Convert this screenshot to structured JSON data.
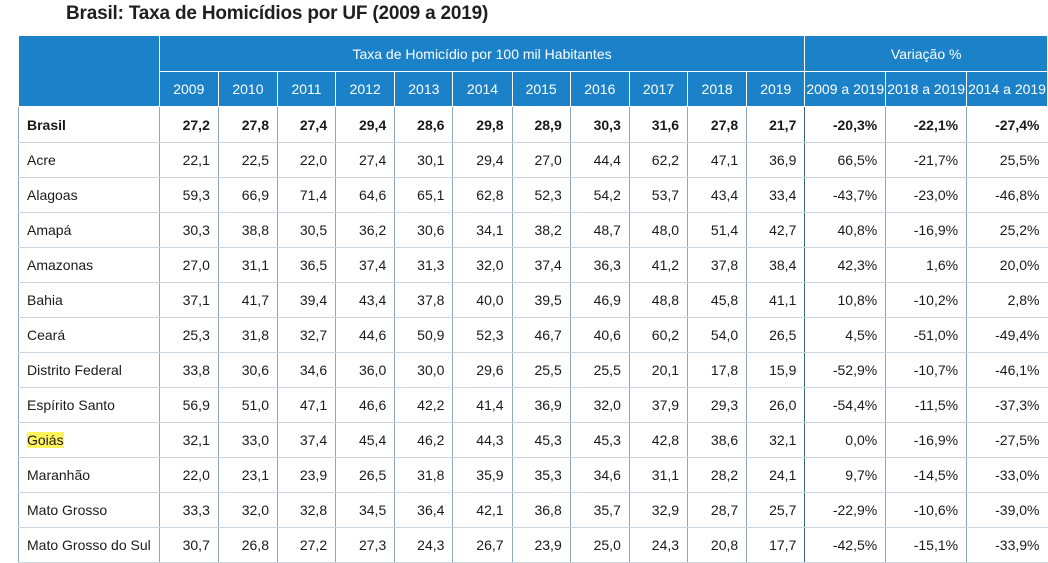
{
  "title": "Brasil: Taxa de Homicídios por UF (2009 a 2019)",
  "header": {
    "group_rate": "Taxa de Homicídio por 100 mil Habitantes",
    "group_var": "Variação %",
    "years": [
      "2009",
      "2010",
      "2011",
      "2012",
      "2013",
      "2014",
      "2015",
      "2016",
      "2017",
      "2018",
      "2019"
    ],
    "variations": [
      "2009 a 2019",
      "2018 a 2019",
      "2014 a 2019"
    ]
  },
  "rows": [
    {
      "name": "Brasil",
      "values": [
        "27,2",
        "27,8",
        "27,4",
        "29,4",
        "28,6",
        "29,8",
        "28,9",
        "30,3",
        "31,6",
        "27,8",
        "21,7"
      ],
      "var": [
        "-20,3%",
        "-22,1%",
        "-27,4%"
      ]
    },
    {
      "name": "Acre",
      "values": [
        "22,1",
        "22,5",
        "22,0",
        "27,4",
        "30,1",
        "29,4",
        "27,0",
        "44,4",
        "62,2",
        "47,1",
        "36,9"
      ],
      "var": [
        "66,5%",
        "-21,7%",
        "25,5%"
      ]
    },
    {
      "name": "Alagoas",
      "values": [
        "59,3",
        "66,9",
        "71,4",
        "64,6",
        "65,1",
        "62,8",
        "52,3",
        "54,2",
        "53,7",
        "43,4",
        "33,4"
      ],
      "var": [
        "-43,7%",
        "-23,0%",
        "-46,8%"
      ]
    },
    {
      "name": "Amapá",
      "values": [
        "30,3",
        "38,8",
        "30,5",
        "36,2",
        "30,6",
        "34,1",
        "38,2",
        "48,7",
        "48,0",
        "51,4",
        "42,7"
      ],
      "var": [
        "40,8%",
        "-16,9%",
        "25,2%"
      ]
    },
    {
      "name": "Amazonas",
      "values": [
        "27,0",
        "31,1",
        "36,5",
        "37,4",
        "31,3",
        "32,0",
        "37,4",
        "36,3",
        "41,2",
        "37,8",
        "38,4"
      ],
      "var": [
        "42,3%",
        "1,6%",
        "20,0%"
      ]
    },
    {
      "name": "Bahia",
      "values": [
        "37,1",
        "41,7",
        "39,4",
        "43,4",
        "37,8",
        "40,0",
        "39,5",
        "46,9",
        "48,8",
        "45,8",
        "41,1"
      ],
      "var": [
        "10,8%",
        "-10,2%",
        "2,8%"
      ]
    },
    {
      "name": "Ceará",
      "values": [
        "25,3",
        "31,8",
        "32,7",
        "44,6",
        "50,9",
        "52,3",
        "46,7",
        "40,6",
        "60,2",
        "54,0",
        "26,5"
      ],
      "var": [
        "4,5%",
        "-51,0%",
        "-49,4%"
      ]
    },
    {
      "name": "Distrito Federal",
      "values": [
        "33,8",
        "30,6",
        "34,6",
        "36,0",
        "30,0",
        "29,6",
        "25,5",
        "25,5",
        "20,1",
        "17,8",
        "15,9"
      ],
      "var": [
        "-52,9%",
        "-10,7%",
        "-46,1%"
      ]
    },
    {
      "name": "Espírito Santo",
      "values": [
        "56,9",
        "51,0",
        "47,1",
        "46,6",
        "42,2",
        "41,4",
        "36,9",
        "32,0",
        "37,9",
        "29,3",
        "26,0"
      ],
      "var": [
        "-54,4%",
        "-11,5%",
        "-37,3%"
      ]
    },
    {
      "name": "Goiás",
      "values": [
        "32,1",
        "33,0",
        "37,4",
        "45,4",
        "46,2",
        "44,3",
        "45,3",
        "45,3",
        "42,8",
        "38,6",
        "32,1"
      ],
      "var": [
        "0,0%",
        "-16,9%",
        "-27,5%"
      ]
    },
    {
      "name": "Maranhão",
      "values": [
        "22,0",
        "23,1",
        "23,9",
        "26,5",
        "31,8",
        "35,9",
        "35,3",
        "34,6",
        "31,1",
        "28,2",
        "24,1"
      ],
      "var": [
        "9,7%",
        "-14,5%",
        "-33,0%"
      ]
    },
    {
      "name": "Mato Grosso",
      "values": [
        "33,3",
        "32,0",
        "32,8",
        "34,5",
        "36,4",
        "42,1",
        "36,8",
        "35,7",
        "32,9",
        "28,7",
        "25,7"
      ],
      "var": [
        "-22,9%",
        "-10,6%",
        "-39,0%"
      ]
    },
    {
      "name": "Mato Grosso do Sul",
      "values": [
        "30,7",
        "26,8",
        "27,2",
        "27,3",
        "24,3",
        "26,7",
        "23,9",
        "25,0",
        "24,3",
        "20,8",
        "17,7"
      ],
      "var": [
        "-42,5%",
        "-15,1%",
        "-33,9%"
      ]
    }
  ],
  "highlight_color": "#fff45c"
}
